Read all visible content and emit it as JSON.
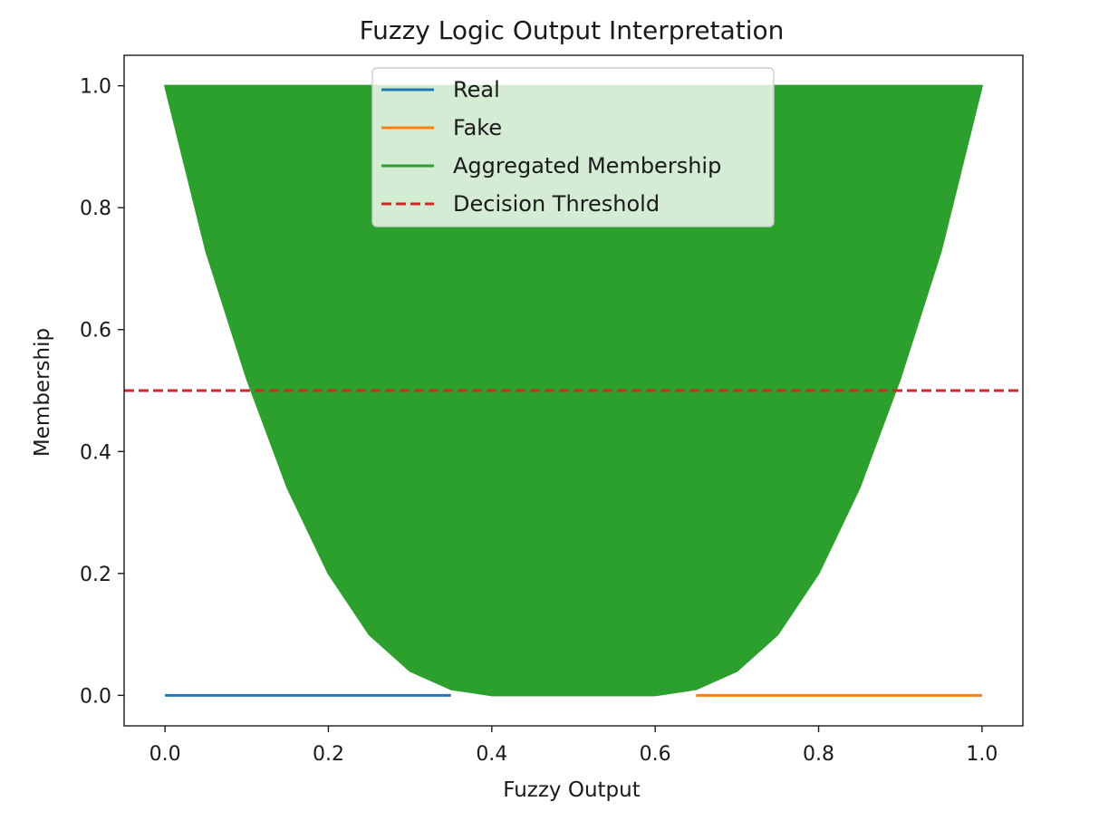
{
  "chart_data": {
    "type": "area",
    "title": "Fuzzy Logic Output Interpretation",
    "xlabel": "Fuzzy Output",
    "ylabel": "Membership",
    "xlim": [
      -0.05,
      1.05
    ],
    "ylim": [
      -0.05,
      1.05
    ],
    "xticks": [
      0.0,
      0.2,
      0.4,
      0.6,
      0.8,
      1.0
    ],
    "xtick_labels": [
      "0.0",
      "0.2",
      "0.4",
      "0.6",
      "0.8",
      "1.0"
    ],
    "yticks": [
      0.0,
      0.2,
      0.4,
      0.6,
      0.8,
      1.0
    ],
    "ytick_labels": [
      "0.0",
      "0.2",
      "0.4",
      "0.6",
      "0.8",
      "1.0"
    ],
    "grid": false,
    "legend_position": "top-center",
    "series": [
      {
        "name": "Real",
        "kind": "line",
        "color": "#1f77b4",
        "x": [
          0.0,
          0.35
        ],
        "y": [
          0.0,
          0.0
        ]
      },
      {
        "name": "Fake",
        "kind": "line",
        "color": "#ff7f0e",
        "x": [
          0.65,
          1.0
        ],
        "y": [
          0.0,
          0.0
        ]
      },
      {
        "name": "Aggregated Membership",
        "kind": "filled-band",
        "color": "#2ca02c",
        "x": [
          0.0,
          0.05,
          0.1,
          0.15,
          0.2,
          0.25,
          0.3,
          0.35,
          0.4,
          0.45,
          0.5,
          0.55,
          0.6,
          0.65,
          0.7,
          0.75,
          0.8,
          0.85,
          0.9,
          0.95,
          1.0
        ],
        "y_lower": [
          1.0,
          0.73,
          0.52,
          0.34,
          0.2,
          0.1,
          0.04,
          0.01,
          0.0,
          0.0,
          0.0,
          0.0,
          0.0,
          0.01,
          0.04,
          0.1,
          0.2,
          0.34,
          0.52,
          0.73,
          1.0
        ],
        "y_upper": [
          1.0,
          1.0,
          1.0,
          1.0,
          1.0,
          1.0,
          1.0,
          1.0,
          1.0,
          1.0,
          1.0,
          1.0,
          1.0,
          1.0,
          1.0,
          1.0,
          1.0,
          1.0,
          1.0,
          1.0,
          1.0
        ]
      },
      {
        "name": "Decision Threshold",
        "kind": "hline",
        "color": "#d62728",
        "style": "dashed",
        "y": 0.5
      }
    ]
  }
}
